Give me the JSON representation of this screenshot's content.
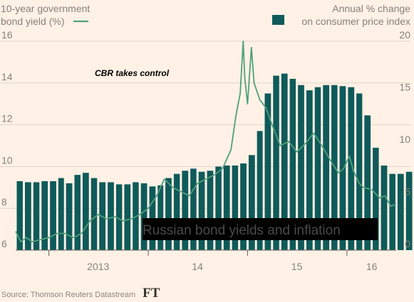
{
  "chart_data": {
    "type": "bar+line",
    "title": "Russian bond yields and inflation",
    "annotation": "CBR takes control",
    "source": "Source: Thomson Reuters Datastream",
    "logo": "FT",
    "left_axis": {
      "label_line1": "10-year government",
      "label_line2": "bond yield (%)",
      "ylim": [
        6,
        16
      ],
      "ticks": [
        "6",
        "8",
        "10",
        "12",
        "14",
        "16"
      ]
    },
    "right_axis": {
      "label_line1": "Annual % change",
      "label_line2": "on consumer price index",
      "ylim": [
        0,
        20
      ],
      "ticks": [
        "0",
        "5",
        "10",
        "15",
        "20"
      ]
    },
    "x_axis": {
      "range": [
        "2012-09-01",
        "2016-06-30"
      ],
      "tick_labels": [
        {
          "label": "2013",
          "date": "2013-07-01"
        },
        {
          "label": "14",
          "date": "2014-07-01"
        },
        {
          "label": "15",
          "date": "2015-07-01"
        },
        {
          "label": "16",
          "date": "2016-04-01"
        }
      ],
      "boundaries": [
        "2013-01-01",
        "2014-01-01",
        "2015-01-01",
        "2016-01-01"
      ]
    },
    "bar_series": {
      "name": "Annual % change on consumer price index",
      "color": "#0f5a5a",
      "start_month": "2012-09",
      "values": [
        6.6,
        6.5,
        6.5,
        6.6,
        6.6,
        6.9,
        6.4,
        7.2,
        7.4,
        6.9,
        6.5,
        6.5,
        6.3,
        6.3,
        6.5,
        6.4,
        6.1,
        6.2,
        6.9,
        7.3,
        7.6,
        7.8,
        7.5,
        7.6,
        8.0,
        8.1,
        8.1,
        8.3,
        9.1,
        11.4,
        15.0,
        16.7,
        16.9,
        16.4,
        15.8,
        15.3,
        15.6,
        15.8,
        15.8,
        15.7,
        15.6,
        15.0,
        12.9,
        9.8,
        8.1,
        7.3,
        7.3,
        7.5,
        7.3,
        6.9
      ]
    },
    "line_series": {
      "name": "10-year government bond yield (%)",
      "color": "#4fa07b",
      "points": [
        [
          "2012-09-01",
          6.9
        ],
        [
          "2012-09-20",
          6.4
        ],
        [
          "2012-10-10",
          6.6
        ],
        [
          "2012-11-01",
          6.4
        ],
        [
          "2012-12-01",
          6.5
        ],
        [
          "2013-01-01",
          6.6
        ],
        [
          "2013-02-01",
          6.8
        ],
        [
          "2013-03-01",
          6.8
        ],
        [
          "2013-04-01",
          6.6
        ],
        [
          "2013-05-01",
          6.8
        ],
        [
          "2013-06-01",
          7.4
        ],
        [
          "2013-07-01",
          7.7
        ],
        [
          "2013-08-01",
          7.5
        ],
        [
          "2013-09-01",
          7.6
        ],
        [
          "2013-10-01",
          7.4
        ],
        [
          "2013-11-01",
          7.5
        ],
        [
          "2013-12-01",
          7.7
        ],
        [
          "2014-01-01",
          8.0
        ],
        [
          "2014-02-01",
          8.6
        ],
        [
          "2014-03-01",
          9.4
        ],
        [
          "2014-04-01",
          9.0
        ],
        [
          "2014-05-01",
          8.8
        ],
        [
          "2014-06-01",
          8.6
        ],
        [
          "2014-07-01",
          9.2
        ],
        [
          "2014-08-01",
          9.4
        ],
        [
          "2014-09-01",
          9.6
        ],
        [
          "2014-10-01",
          9.9
        ],
        [
          "2014-11-01",
          10.8
        ],
        [
          "2014-11-20",
          12.5
        ],
        [
          "2014-12-05",
          13.5
        ],
        [
          "2014-12-16",
          16.0
        ],
        [
          "2014-12-22",
          14.2
        ],
        [
          "2015-01-01",
          13.0
        ],
        [
          "2015-01-15",
          15.7
        ],
        [
          "2015-01-25",
          14.0
        ],
        [
          "2015-02-15",
          13.2
        ],
        [
          "2015-03-10",
          12.8
        ],
        [
          "2015-04-01",
          12.0
        ],
        [
          "2015-05-01",
          11.0
        ],
        [
          "2015-06-01",
          11.2
        ],
        [
          "2015-07-01",
          10.7
        ],
        [
          "2015-08-01",
          11.1
        ],
        [
          "2015-09-01",
          11.6
        ],
        [
          "2015-10-01",
          11.0
        ],
        [
          "2015-11-01",
          10.3
        ],
        [
          "2015-12-01",
          9.7
        ],
        [
          "2015-12-20",
          9.9
        ],
        [
          "2016-01-10",
          10.5
        ],
        [
          "2016-01-25",
          9.8
        ],
        [
          "2016-02-15",
          9.2
        ],
        [
          "2016-03-01",
          9.0
        ],
        [
          "2016-04-01",
          8.9
        ],
        [
          "2016-05-01",
          8.5
        ],
        [
          "2016-05-20",
          8.6
        ],
        [
          "2016-06-10",
          8.1
        ],
        [
          "2016-06-30",
          8.2
        ]
      ]
    }
  }
}
